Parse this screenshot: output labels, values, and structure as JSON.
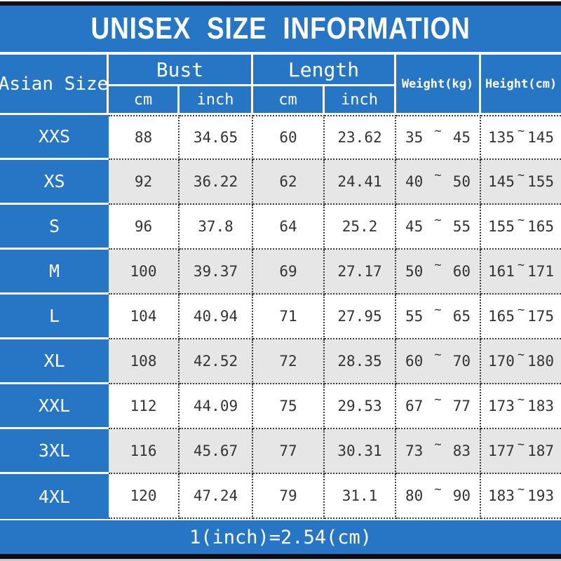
{
  "title": "UNISEX SIZE INFORMATION",
  "header": {
    "size_col": "Asian Size",
    "bust": "Bust",
    "length": "Length",
    "cm": "cm",
    "inch": "inch",
    "weight": "Weight(kg)",
    "height": "Height(cm)"
  },
  "symbols": {
    "tilde": "~"
  },
  "rows": [
    {
      "size": "XXS",
      "bust_cm": "88",
      "bust_inch": "34.65",
      "length_cm": "60",
      "length_inch": "23.62",
      "weight_min": "35",
      "weight_max": "45",
      "height_min": "135",
      "height_max": "145"
    },
    {
      "size": "XS",
      "bust_cm": "92",
      "bust_inch": "36.22",
      "length_cm": "62",
      "length_inch": "24.41",
      "weight_min": "40",
      "weight_max": "50",
      "height_min": "145",
      "height_max": "155"
    },
    {
      "size": "S",
      "bust_cm": "96",
      "bust_inch": "37.8",
      "length_cm": "64",
      "length_inch": "25.2",
      "weight_min": "45",
      "weight_max": "55",
      "height_min": "155",
      "height_max": "165"
    },
    {
      "size": "M",
      "bust_cm": "100",
      "bust_inch": "39.37",
      "length_cm": "69",
      "length_inch": "27.17",
      "weight_min": "50",
      "weight_max": "60",
      "height_min": "161",
      "height_max": "171"
    },
    {
      "size": "L",
      "bust_cm": "104",
      "bust_inch": "40.94",
      "length_cm": "71",
      "length_inch": "27.95",
      "weight_min": "55",
      "weight_max": "65",
      "height_min": "165",
      "height_max": "175"
    },
    {
      "size": "XL",
      "bust_cm": "108",
      "bust_inch": "42.52",
      "length_cm": "72",
      "length_inch": "28.35",
      "weight_min": "60",
      "weight_max": "70",
      "height_min": "170",
      "height_max": "180"
    },
    {
      "size": "XXL",
      "bust_cm": "112",
      "bust_inch": "44.09",
      "length_cm": "75",
      "length_inch": "29.53",
      "weight_min": "67",
      "weight_max": "77",
      "height_min": "173",
      "height_max": "183"
    },
    {
      "size": "3XL",
      "bust_cm": "116",
      "bust_inch": "45.67",
      "length_cm": "77",
      "length_inch": "30.31",
      "weight_min": "73",
      "weight_max": "83",
      "height_min": "177",
      "height_max": "187"
    },
    {
      "size": "4XL",
      "bust_cm": "120",
      "bust_inch": "47.24",
      "length_cm": "79",
      "length_inch": "31.1",
      "weight_min": "80",
      "weight_max": "90",
      "height_min": "183",
      "height_max": "193"
    }
  ],
  "footer": {
    "note": "1(inch)=2.54(cm)"
  },
  "colors": {
    "blue": "#2776c6",
    "row_alt": "#e7e6e7",
    "top_bar": "#101016",
    "bottom_bar": "#0c0c16",
    "text": "#333333"
  },
  "chart_data": {
    "type": "table",
    "title": "UNISEX SIZE INFORMATION",
    "columns": [
      "Asian Size",
      "Bust cm",
      "Bust inch",
      "Length cm",
      "Length inch",
      "Weight(kg)",
      "Height(cm)"
    ],
    "rows": [
      [
        "XXS",
        "88",
        "34.65",
        "60",
        "23.62",
        "35~45",
        "135~145"
      ],
      [
        "XS",
        "92",
        "36.22",
        "62",
        "24.41",
        "40~50",
        "145~155"
      ],
      [
        "S",
        "96",
        "37.8",
        "64",
        "25.2",
        "45~55",
        "155~165"
      ],
      [
        "M",
        "100",
        "39.37",
        "69",
        "27.17",
        "50~60",
        "161~171"
      ],
      [
        "L",
        "104",
        "40.94",
        "71",
        "27.95",
        "55~65",
        "165~175"
      ],
      [
        "XL",
        "108",
        "42.52",
        "72",
        "28.35",
        "60~70",
        "170~180"
      ],
      [
        "XXL",
        "112",
        "44.09",
        "75",
        "29.53",
        "67~77",
        "173~183"
      ],
      [
        "3XL",
        "116",
        "45.67",
        "77",
        "30.31",
        "73~83",
        "177~187"
      ],
      [
        "4XL",
        "120",
        "47.24",
        "79",
        "31.1",
        "80~90",
        "183~193"
      ]
    ],
    "note": "1(inch)=2.54(cm)"
  }
}
